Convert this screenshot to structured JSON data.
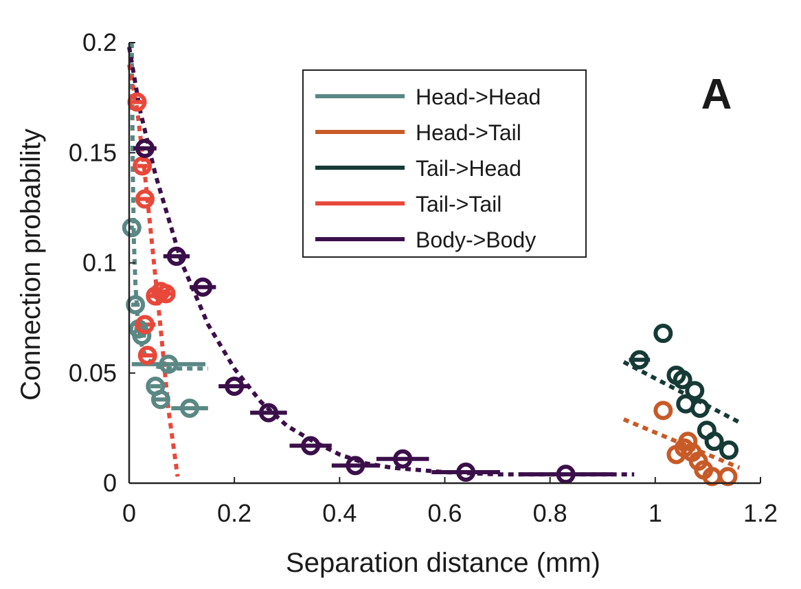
{
  "chart_data": {
    "type": "scatter",
    "xlabel": "Separation distance (mm)",
    "ylabel": "Connection probability",
    "panel_label": "A",
    "xlim": [
      0,
      1.2
    ],
    "ylim": [
      0,
      0.2
    ],
    "xticks": [
      0,
      0.2,
      0.4,
      0.6,
      0.8,
      1,
      1.2
    ],
    "xtick_labels": [
      "0",
      "0.2",
      "0.4",
      "0.6",
      "0.8",
      "1",
      "1.2"
    ],
    "yticks": [
      0,
      0.05,
      0.1,
      0.15,
      0.2
    ],
    "ytick_labels": [
      "0",
      "0.05",
      "0.1",
      "0.15",
      "0.2"
    ],
    "grid": false,
    "legend_position": "top-right",
    "series": [
      {
        "name": "Head->Head",
        "color": "#5a8884",
        "points": [
          {
            "x": 0.005,
            "y": 0.116,
            "xerr": 0.004
          },
          {
            "x": 0.012,
            "y": 0.081,
            "xerr": 0.008
          },
          {
            "x": 0.018,
            "y": 0.07,
            "xerr": 0.008
          },
          {
            "x": 0.024,
            "y": 0.067,
            "xerr": 0.008
          },
          {
            "x": 0.05,
            "y": 0.044,
            "xerr": 0.01
          },
          {
            "x": 0.06,
            "y": 0.038,
            "xerr": 0.012
          },
          {
            "x": 0.075,
            "y": 0.054,
            "xerr": 0.07
          },
          {
            "x": 0.115,
            "y": 0.034,
            "xerr": 0.035
          }
        ],
        "fit": [
          [
            0.005,
            0.2
          ],
          [
            0.007,
            0.14
          ],
          [
            0.009,
            0.11
          ],
          [
            0.012,
            0.09
          ],
          [
            0.016,
            0.075
          ],
          [
            0.022,
            0.064
          ],
          [
            0.032,
            0.057
          ],
          [
            0.05,
            0.053
          ],
          [
            0.08,
            0.052
          ],
          [
            0.15,
            0.052
          ]
        ]
      },
      {
        "name": "Head->Tail",
        "color": "#c85a28",
        "points": [
          {
            "x": 1.015,
            "y": 0.033
          },
          {
            "x": 1.04,
            "y": 0.013
          },
          {
            "x": 1.055,
            "y": 0.016
          },
          {
            "x": 1.062,
            "y": 0.019
          },
          {
            "x": 1.07,
            "y": 0.014
          },
          {
            "x": 1.082,
            "y": 0.01
          },
          {
            "x": 1.092,
            "y": 0.006
          },
          {
            "x": 1.108,
            "y": 0.003
          },
          {
            "x": 1.138,
            "y": 0.003
          }
        ],
        "fit": [
          [
            0.94,
            0.029
          ],
          [
            1.16,
            0.007
          ]
        ]
      },
      {
        "name": "Tail->Head",
        "color": "#163a36",
        "points": [
          {
            "x": 0.97,
            "y": 0.056,
            "xerr": 0.02
          },
          {
            "x": 1.015,
            "y": 0.068
          },
          {
            "x": 1.04,
            "y": 0.049
          },
          {
            "x": 1.052,
            "y": 0.047
          },
          {
            "x": 1.058,
            "y": 0.036
          },
          {
            "x": 1.075,
            "y": 0.042
          },
          {
            "x": 1.085,
            "y": 0.034
          },
          {
            "x": 1.098,
            "y": 0.024
          },
          {
            "x": 1.112,
            "y": 0.019
          },
          {
            "x": 1.14,
            "y": 0.015
          }
        ],
        "fit": [
          [
            0.94,
            0.055
          ],
          [
            1.165,
            0.027
          ]
        ]
      },
      {
        "name": "Tail->Tail",
        "color": "#e8483a",
        "points": [
          {
            "x": 0.015,
            "y": 0.173,
            "xerr": 0.012
          },
          {
            "x": 0.025,
            "y": 0.144,
            "xerr": 0.01
          },
          {
            "x": 0.03,
            "y": 0.129,
            "xerr": 0.012
          },
          {
            "x": 0.03,
            "y": 0.072,
            "xerr": 0.02
          },
          {
            "x": 0.035,
            "y": 0.058,
            "xerr": 0.015
          },
          {
            "x": 0.05,
            "y": 0.085,
            "xerr": 0.015
          },
          {
            "x": 0.06,
            "y": 0.087,
            "xerr": 0.012
          },
          {
            "x": 0.07,
            "y": 0.086,
            "xerr": 0.012
          }
        ],
        "fit": [
          [
            0.0,
            0.19
          ],
          [
            0.015,
            0.17
          ],
          [
            0.03,
            0.14
          ],
          [
            0.045,
            0.105
          ],
          [
            0.06,
            0.07
          ],
          [
            0.075,
            0.033
          ],
          [
            0.092,
            0.003
          ]
        ]
      },
      {
        "name": "Body->Body",
        "color": "#3b0f4a",
        "points": [
          {
            "x": 0.03,
            "y": 0.152,
            "xerr": 0.022
          },
          {
            "x": 0.09,
            "y": 0.103,
            "xerr": 0.025
          },
          {
            "x": 0.14,
            "y": 0.089,
            "xerr": 0.025
          },
          {
            "x": 0.2,
            "y": 0.044,
            "xerr": 0.03
          },
          {
            "x": 0.265,
            "y": 0.032,
            "xerr": 0.035
          },
          {
            "x": 0.345,
            "y": 0.017,
            "xerr": 0.04
          },
          {
            "x": 0.43,
            "y": 0.008,
            "xerr": 0.045
          },
          {
            "x": 0.52,
            "y": 0.011,
            "xerr": 0.05
          },
          {
            "x": 0.64,
            "y": 0.005,
            "xerr": 0.065
          },
          {
            "x": 0.83,
            "y": 0.004,
            "xerr": 0.09
          }
        ],
        "fit": [
          [
            0.0,
            0.198
          ],
          [
            0.02,
            0.17
          ],
          [
            0.05,
            0.14
          ],
          [
            0.1,
            0.1
          ],
          [
            0.15,
            0.072
          ],
          [
            0.2,
            0.052
          ],
          [
            0.25,
            0.037
          ],
          [
            0.3,
            0.026
          ],
          [
            0.35,
            0.019
          ],
          [
            0.4,
            0.013
          ],
          [
            0.45,
            0.009
          ],
          [
            0.5,
            0.007
          ],
          [
            0.6,
            0.005
          ],
          [
            0.7,
            0.004
          ],
          [
            0.8,
            0.004
          ],
          [
            0.96,
            0.004
          ]
        ]
      }
    ]
  }
}
